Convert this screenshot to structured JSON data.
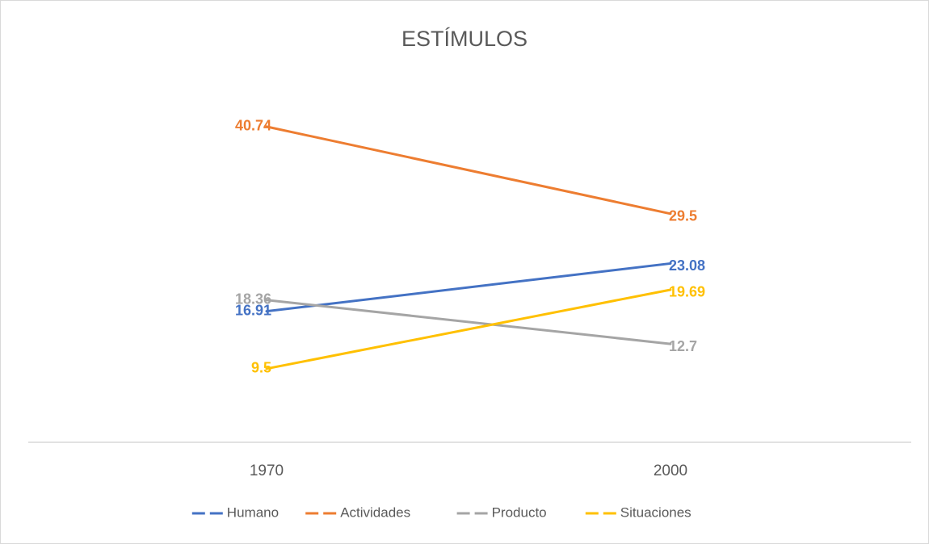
{
  "chart_data": {
    "type": "line",
    "title": "ESTÍMULOS",
    "categories": [
      "1970",
      "2000"
    ],
    "series": [
      {
        "name": "Humano",
        "color": "#4472c4",
        "values": [
          16.91,
          23.08
        ]
      },
      {
        "name": "Actividades",
        "color": "#ed7d31",
        "values": [
          40.74,
          29.5
        ]
      },
      {
        "name": "Producto",
        "color": "#a5a5a5",
        "values": [
          18.36,
          12.7
        ]
      },
      {
        "name": "Situaciones",
        "color": "#ffc000",
        "values": [
          9.5,
          19.69
        ]
      }
    ],
    "ylim": [
      0,
      45
    ],
    "legend": "bottom"
  }
}
